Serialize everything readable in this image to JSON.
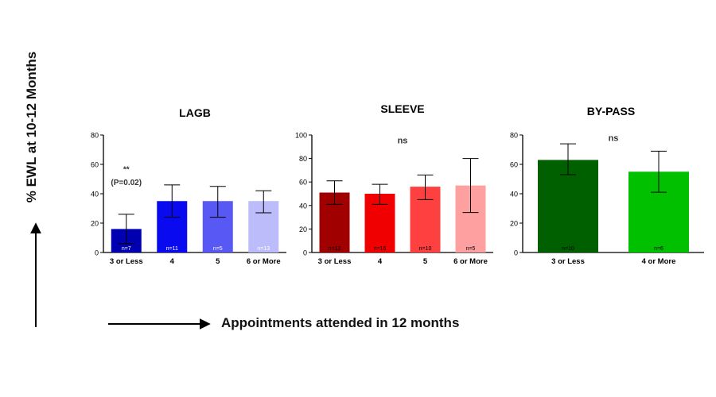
{
  "figure": {
    "y_axis_label": "% EWL at 10-12 Months",
    "x_axis_label": "Appointments attended in 12 months"
  },
  "chart_data": [
    {
      "type": "bar",
      "title": "LAGB",
      "categories": [
        "3 or Less",
        "4",
        "5",
        "6 or More"
      ],
      "values": [
        16,
        35,
        35,
        35
      ],
      "error_high": [
        26,
        46,
        45,
        42
      ],
      "error_low": [
        6,
        24,
        24,
        27
      ],
      "n_labels": [
        "n=7",
        "n=11",
        "n=5",
        "n=13"
      ],
      "colors": [
        "#0000b0",
        "#0a0af0",
        "#5858f5",
        "#bcbcfa"
      ],
      "ylim": [
        0,
        80
      ],
      "yticks": [
        0,
        20,
        40,
        60,
        80
      ],
      "annotations": [
        {
          "text": "**",
          "x_category": "3 or Less",
          "y": 55
        },
        {
          "text": "(P=0.02)",
          "x_category": "3 or Less",
          "y": 46
        }
      ],
      "grid": false
    },
    {
      "type": "bar",
      "title": "SLEEVE",
      "categories": [
        "3 or Less",
        "4",
        "5",
        "6 or More"
      ],
      "values": [
        51,
        50,
        56,
        57
      ],
      "error_high": [
        61,
        58,
        66,
        80
      ],
      "error_low": [
        41,
        41,
        45,
        34
      ],
      "n_labels": [
        "n=12",
        "n=16",
        "n=10",
        "n=5"
      ],
      "colors": [
        "#a00000",
        "#f00000",
        "#ff4040",
        "#ffa0a0"
      ],
      "ylim": [
        0,
        100
      ],
      "yticks": [
        0,
        20,
        40,
        60,
        80,
        100
      ],
      "annotations": [
        {
          "text": "ns",
          "y": 93
        }
      ],
      "grid": false
    },
    {
      "type": "bar",
      "title": "BY-PASS",
      "categories": [
        "3 or Less",
        "4 or More"
      ],
      "values": [
        63,
        55
      ],
      "error_high": [
        74,
        69
      ],
      "error_low": [
        53,
        41
      ],
      "n_labels": [
        "n=10",
        "n=6"
      ],
      "colors": [
        "#006000",
        "#00c000"
      ],
      "ylim": [
        0,
        80
      ],
      "yticks": [
        0,
        20,
        40,
        60,
        80
      ],
      "annotations": [
        {
          "text": "ns",
          "y": 76
        }
      ],
      "grid": false
    }
  ]
}
